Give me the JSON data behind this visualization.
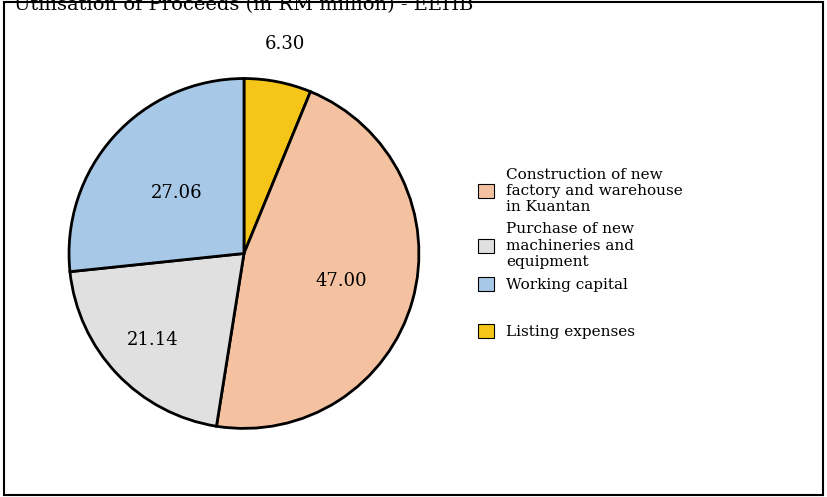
{
  "title": "Utilisation of Proceeds (in RM million) - EEHB",
  "values": [
    6.3,
    47.0,
    21.14,
    27.06
  ],
  "labels": [
    "6.30",
    "47.00",
    "21.14",
    "27.06"
  ],
  "colors": [
    "#F5C518",
    "#F4C2A1",
    "#E0E0E0",
    "#A8C8E8"
  ],
  "legend_labels": [
    "Construction of new\nfactory and warehouse\nin Kuantan",
    "Purchase of new\nmachineries and\nequipment",
    "Working capital",
    "",
    "Listing expenses"
  ],
  "legend_colors": [
    "#F4C2A1",
    "#E0E0E0",
    "#A8C8E8",
    null,
    "#F5C518"
  ],
  "startangle": 90,
  "background_color": "#ffffff",
  "edge_color": "#000000",
  "edge_linewidth": 2.0,
  "title_fontsize": 14,
  "label_fontsize": 13,
  "legend_fontsize": 11
}
